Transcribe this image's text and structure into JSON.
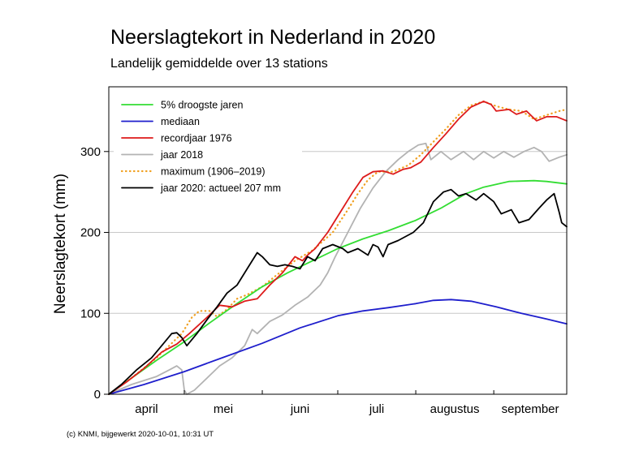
{
  "chart_data": {
    "type": "line",
    "title": "Neerslagtekort in Nederland in 2020",
    "subtitle": "Landelijk gemiddelde over 13 stations",
    "ylabel": "Neerslagtekort (mm)",
    "xlabel": "",
    "credit": "(c) KNMI, bijgewerkt 2020-10-01, 10:31 UT",
    "ylim": [
      0,
      380
    ],
    "xlim": [
      1,
      183
    ],
    "yticks": [
      "0",
      "100",
      "200",
      "300"
    ],
    "ytick_values": [
      0,
      100,
      200,
      300
    ],
    "months": [
      {
        "label": "april",
        "start": 1,
        "end": 31
      },
      {
        "label": "mei",
        "start": 31,
        "end": 62
      },
      {
        "label": "juni",
        "start": 62,
        "end": 92
      },
      {
        "label": "juli",
        "start": 92,
        "end": 123
      },
      {
        "label": "augustus",
        "start": 123,
        "end": 154
      },
      {
        "label": "september",
        "start": 154,
        "end": 184
      }
    ],
    "grid": true,
    "legend_position": "top-left",
    "series": [
      {
        "name": "5% droogste jaren",
        "color": "#33dd33",
        "style": "solid",
        "points": [
          [
            1,
            0
          ],
          [
            10,
            20
          ],
          [
            20,
            42
          ],
          [
            31,
            65
          ],
          [
            41,
            88
          ],
          [
            51,
            110
          ],
          [
            62,
            133
          ],
          [
            72,
            150
          ],
          [
            82,
            165
          ],
          [
            92,
            180
          ],
          [
            102,
            192
          ],
          [
            112,
            202
          ],
          [
            123,
            215
          ],
          [
            133,
            230
          ],
          [
            143,
            248
          ],
          [
            150,
            256
          ],
          [
            160,
            263
          ],
          [
            170,
            264
          ],
          [
            175,
            263
          ],
          [
            183,
            260
          ]
        ]
      },
      {
        "name": "mediaan",
        "color": "#1e1ecc",
        "style": "solid",
        "points": [
          [
            1,
            0
          ],
          [
            15,
            12
          ],
          [
            31,
            28
          ],
          [
            46,
            45
          ],
          [
            62,
            63
          ],
          [
            77,
            82
          ],
          [
            92,
            97
          ],
          [
            102,
            103
          ],
          [
            112,
            107
          ],
          [
            123,
            112
          ],
          [
            130,
            116
          ],
          [
            137,
            117
          ],
          [
            145,
            115
          ],
          [
            155,
            108
          ],
          [
            165,
            100
          ],
          [
            175,
            93
          ],
          [
            183,
            87
          ]
        ]
      },
      {
        "name": "recordjaar 1976",
        "color": "#dd1a1a",
        "style": "solid",
        "points": [
          [
            1,
            0
          ],
          [
            8,
            15
          ],
          [
            15,
            32
          ],
          [
            22,
            52
          ],
          [
            28,
            62
          ],
          [
            33,
            75
          ],
          [
            40,
            95
          ],
          [
            45,
            110
          ],
          [
            50,
            108
          ],
          [
            55,
            115
          ],
          [
            60,
            118
          ],
          [
            65,
            135
          ],
          [
            70,
            150
          ],
          [
            75,
            170
          ],
          [
            78,
            165
          ],
          [
            80,
            172
          ],
          [
            83,
            180
          ],
          [
            88,
            200
          ],
          [
            93,
            225
          ],
          [
            98,
            250
          ],
          [
            102,
            268
          ],
          [
            106,
            275
          ],
          [
            110,
            276
          ],
          [
            114,
            272
          ],
          [
            118,
            278
          ],
          [
            121,
            280
          ],
          [
            125,
            287
          ],
          [
            130,
            305
          ],
          [
            135,
            322
          ],
          [
            140,
            340
          ],
          [
            145,
            355
          ],
          [
            150,
            362
          ],
          [
            153,
            358
          ],
          [
            155,
            350
          ],
          [
            160,
            352
          ],
          [
            163,
            346
          ],
          [
            167,
            350
          ],
          [
            171,
            338
          ],
          [
            175,
            343
          ],
          [
            179,
            343
          ],
          [
            183,
            338
          ]
        ]
      },
      {
        "name": "jaar 2018",
        "color": "#b3b3b3",
        "style": "solid",
        "points": [
          [
            1,
            0
          ],
          [
            10,
            12
          ],
          [
            20,
            22
          ],
          [
            25,
            30
          ],
          [
            28,
            35
          ],
          [
            30,
            30
          ],
          [
            31,
            5
          ],
          [
            32,
            0
          ],
          [
            35,
            5
          ],
          [
            40,
            20
          ],
          [
            45,
            35
          ],
          [
            50,
            45
          ],
          [
            55,
            60
          ],
          [
            58,
            80
          ],
          [
            60,
            75
          ],
          [
            65,
            90
          ],
          [
            70,
            98
          ],
          [
            75,
            110
          ],
          [
            80,
            120
          ],
          [
            85,
            135
          ],
          [
            88,
            150
          ],
          [
            91,
            170
          ],
          [
            96,
            200
          ],
          [
            101,
            230
          ],
          [
            106,
            255
          ],
          [
            111,
            275
          ],
          [
            116,
            290
          ],
          [
            120,
            300
          ],
          [
            124,
            308
          ],
          [
            127,
            310
          ],
          [
            129,
            290
          ],
          [
            133,
            300
          ],
          [
            137,
            290
          ],
          [
            142,
            300
          ],
          [
            146,
            290
          ],
          [
            150,
            300
          ],
          [
            154,
            292
          ],
          [
            158,
            300
          ],
          [
            162,
            293
          ],
          [
            166,
            300
          ],
          [
            170,
            305
          ],
          [
            173,
            300
          ],
          [
            176,
            288
          ],
          [
            180,
            293
          ],
          [
            183,
            296
          ]
        ]
      },
      {
        "name": "maximum (1906–2019)",
        "color": "#f0a020",
        "style": "dotted",
        "points": [
          [
            1,
            0
          ],
          [
            10,
            20
          ],
          [
            20,
            45
          ],
          [
            30,
            75
          ],
          [
            34,
            95
          ],
          [
            37,
            103
          ],
          [
            41,
            103
          ],
          [
            44,
            96
          ],
          [
            48,
            105
          ],
          [
            52,
            118
          ],
          [
            56,
            123
          ],
          [
            62,
            133
          ],
          [
            68,
            148
          ],
          [
            75,
            165
          ],
          [
            82,
            178
          ],
          [
            90,
            200
          ],
          [
            96,
            228
          ],
          [
            100,
            248
          ],
          [
            104,
            265
          ],
          [
            108,
            275
          ],
          [
            114,
            275
          ],
          [
            120,
            283
          ],
          [
            125,
            296
          ],
          [
            130,
            312
          ],
          [
            135,
            328
          ],
          [
            140,
            345
          ],
          [
            145,
            357
          ],
          [
            150,
            362
          ],
          [
            155,
            356
          ],
          [
            160,
            352
          ],
          [
            165,
            350
          ],
          [
            170,
            340
          ],
          [
            175,
            345
          ],
          [
            180,
            350
          ],
          [
            183,
            352
          ]
        ]
      },
      {
        "name": "jaar 2020: actueel 207 mm",
        "color": "#000000",
        "style": "solid",
        "points": [
          [
            1,
            0
          ],
          [
            6,
            12
          ],
          [
            12,
            30
          ],
          [
            18,
            45
          ],
          [
            22,
            60
          ],
          [
            26,
            75
          ],
          [
            28,
            76
          ],
          [
            30,
            70
          ],
          [
            32,
            60
          ],
          [
            36,
            75
          ],
          [
            40,
            92
          ],
          [
            44,
            108
          ],
          [
            48,
            125
          ],
          [
            52,
            135
          ],
          [
            56,
            155
          ],
          [
            60,
            175
          ],
          [
            62,
            170
          ],
          [
            65,
            160
          ],
          [
            68,
            158
          ],
          [
            71,
            160
          ],
          [
            74,
            158
          ],
          [
            77,
            155
          ],
          [
            80,
            170
          ],
          [
            83,
            165
          ],
          [
            86,
            180
          ],
          [
            90,
            185
          ],
          [
            94,
            180
          ],
          [
            96,
            175
          ],
          [
            100,
            180
          ],
          [
            104,
            172
          ],
          [
            106,
            185
          ],
          [
            108,
            182
          ],
          [
            110,
            170
          ],
          [
            112,
            185
          ],
          [
            116,
            190
          ],
          [
            119,
            195
          ],
          [
            122,
            200
          ],
          [
            126,
            212
          ],
          [
            130,
            238
          ],
          [
            134,
            250
          ],
          [
            137,
            253
          ],
          [
            140,
            245
          ],
          [
            143,
            248
          ],
          [
            147,
            240
          ],
          [
            150,
            248
          ],
          [
            154,
            238
          ],
          [
            157,
            223
          ],
          [
            161,
            228
          ],
          [
            164,
            212
          ],
          [
            168,
            216
          ],
          [
            172,
            230
          ],
          [
            175,
            240
          ],
          [
            178,
            248
          ],
          [
            180,
            225
          ],
          [
            181,
            212
          ],
          [
            183,
            207
          ]
        ]
      }
    ]
  }
}
